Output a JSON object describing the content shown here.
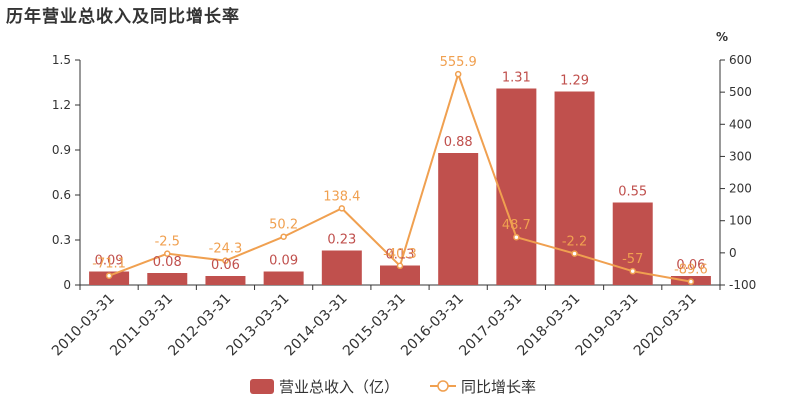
{
  "title": "历年营业总收入及同比增长率",
  "chart_data": {
    "type": "bar",
    "categories": [
      "2010-03-31",
      "2011-03-31",
      "2012-03-31",
      "2013-03-31",
      "2014-03-31",
      "2015-03-31",
      "2016-03-31",
      "2017-03-31",
      "2018-03-31",
      "2019-03-31",
      "2020-03-31"
    ],
    "series": [
      {
        "name": "营业总收入（亿）",
        "type": "bar",
        "axis": "left",
        "values": [
          0.09,
          0.08,
          0.06,
          0.09,
          0.23,
          0.13,
          0.88,
          1.31,
          1.29,
          0.55,
          0.06
        ],
        "labels": [
          "0.09",
          "0.08",
          "0.06",
          "0.09",
          "0.23",
          "0.13",
          "0.88",
          "1.31",
          "1.29",
          "0.55",
          "0.06"
        ],
        "color": "#c0504d"
      },
      {
        "name": "同比增长率",
        "type": "line",
        "axis": "right",
        "values": [
          -71.1,
          -2.5,
          -24.3,
          50.2,
          138.4,
          -40.3,
          555.9,
          48.7,
          -2.2,
          -57,
          -89.6
        ],
        "labels": [
          "-71.1",
          "-2.5",
          "-24.3",
          "50.2",
          "138.4",
          "-40.3",
          "555.9",
          "48.7",
          "-2.2",
          "-57",
          "-89.6"
        ],
        "color": "#f0a050"
      }
    ],
    "y_left": {
      "ticks": [
        "0",
        "0.3",
        "0.6",
        "0.9",
        "1.2",
        "1.5"
      ],
      "ylim": [
        0,
        1.5
      ]
    },
    "y_right": {
      "unit": "%",
      "ticks": [
        "-100",
        "0",
        "100",
        "200",
        "300",
        "400",
        "500",
        "600"
      ],
      "ylim": [
        -100,
        600
      ]
    },
    "grid": false,
    "legend": "bottom"
  }
}
